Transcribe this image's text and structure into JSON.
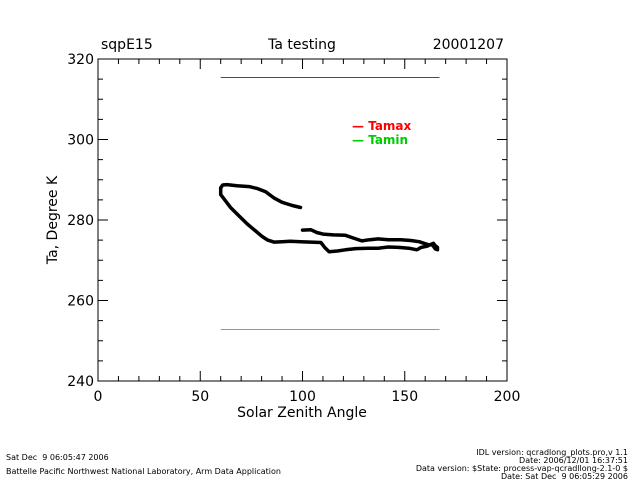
{
  "header": {
    "site": "sqpE15",
    "title": "Ta testing",
    "date": "20001207"
  },
  "footer": {
    "left_line1": "Sat Dec  9 06:05:47 2006",
    "left_line2": "Battelle Pacific Northwest National Laboratory, Arm Data Application",
    "right_line1": "IDL version: qcradlong_plots.pro,v 1.1",
    "right_line2": "Date: 2006/12/01 16:37:51",
    "right_line3": "Data version: $State: process-vap-qcradllong-2.1-0 $",
    "right_line4": "Date: Sat Dec  9 06:05:29 2006"
  },
  "colors": {
    "tamax": "#ff0000",
    "tamin": "#00ff00",
    "data": "#000000"
  },
  "chart_data": {
    "type": "line",
    "title": "Ta testing",
    "xlabel": "Solar Zenith Angle",
    "ylabel": "Ta, Degree K",
    "xlim": [
      0,
      200
    ],
    "ylim": [
      240,
      320
    ],
    "x_ticks": [
      0,
      50,
      100,
      150,
      200
    ],
    "y_ticks": [
      240,
      260,
      280,
      300,
      320
    ],
    "grid": false,
    "legend_position": "top-right",
    "series": [
      {
        "name": "Tamax",
        "color": "#ff0000",
        "x": [
          60,
          167
        ],
        "y": [
          315.4,
          315.4
        ]
      },
      {
        "name": "Tamin",
        "color": "#00ff00",
        "x": [
          60,
          167
        ],
        "y": [
          252.8,
          252.8
        ]
      },
      {
        "color": "#000000",
        "points": [
          [
            99,
            283.1
          ],
          [
            95,
            283.6
          ],
          [
            90,
            284.4
          ],
          [
            86,
            285.5
          ],
          [
            82,
            287
          ],
          [
            78,
            287.8
          ],
          [
            74,
            288.3
          ],
          [
            68,
            288.5
          ],
          [
            63,
            288.8
          ],
          [
            61,
            288.7
          ],
          [
            60,
            288
          ],
          [
            60,
            286.3
          ],
          [
            62,
            285
          ],
          [
            65,
            283
          ],
          [
            69,
            281
          ],
          [
            73,
            279
          ],
          [
            77,
            277.3
          ],
          [
            80,
            276
          ],
          [
            83,
            275
          ],
          [
            86,
            274.5
          ],
          [
            90,
            274.6
          ],
          [
            94,
            274.7
          ],
          [
            99,
            274.6
          ],
          [
            104,
            274.5
          ],
          [
            109,
            274.4
          ],
          [
            111,
            273.1
          ],
          [
            113,
            272.1
          ],
          [
            117,
            272.3
          ],
          [
            121,
            272.6
          ],
          [
            126,
            272.9
          ],
          [
            132,
            273
          ],
          [
            137,
            273
          ],
          [
            142,
            273.3
          ],
          [
            147,
            273.2
          ],
          [
            152,
            273
          ],
          [
            156,
            272.6
          ],
          [
            158,
            273.2
          ],
          [
            161,
            273.5
          ],
          [
            163,
            274
          ],
          [
            164,
            274.2
          ],
          [
            165,
            273.6
          ],
          [
            166,
            273.2
          ],
          [
            166,
            272.6
          ],
          [
            165,
            272.8
          ],
          [
            164,
            273.5
          ],
          [
            163,
            274
          ],
          [
            162,
            273.8
          ],
          [
            160,
            274.1
          ],
          [
            157,
            274.6
          ],
          [
            153,
            274.9
          ],
          [
            148,
            275.1
          ],
          [
            142,
            275.1
          ],
          [
            137,
            275.3
          ],
          [
            133,
            275.1
          ],
          [
            129,
            274.8
          ],
          [
            125,
            275.5
          ],
          [
            121,
            276.2
          ],
          [
            115,
            276.3
          ],
          [
            110,
            276.5
          ],
          [
            107,
            276.9
          ],
          [
            104,
            277.6
          ],
          [
            100,
            277.5
          ]
        ]
      }
    ]
  }
}
